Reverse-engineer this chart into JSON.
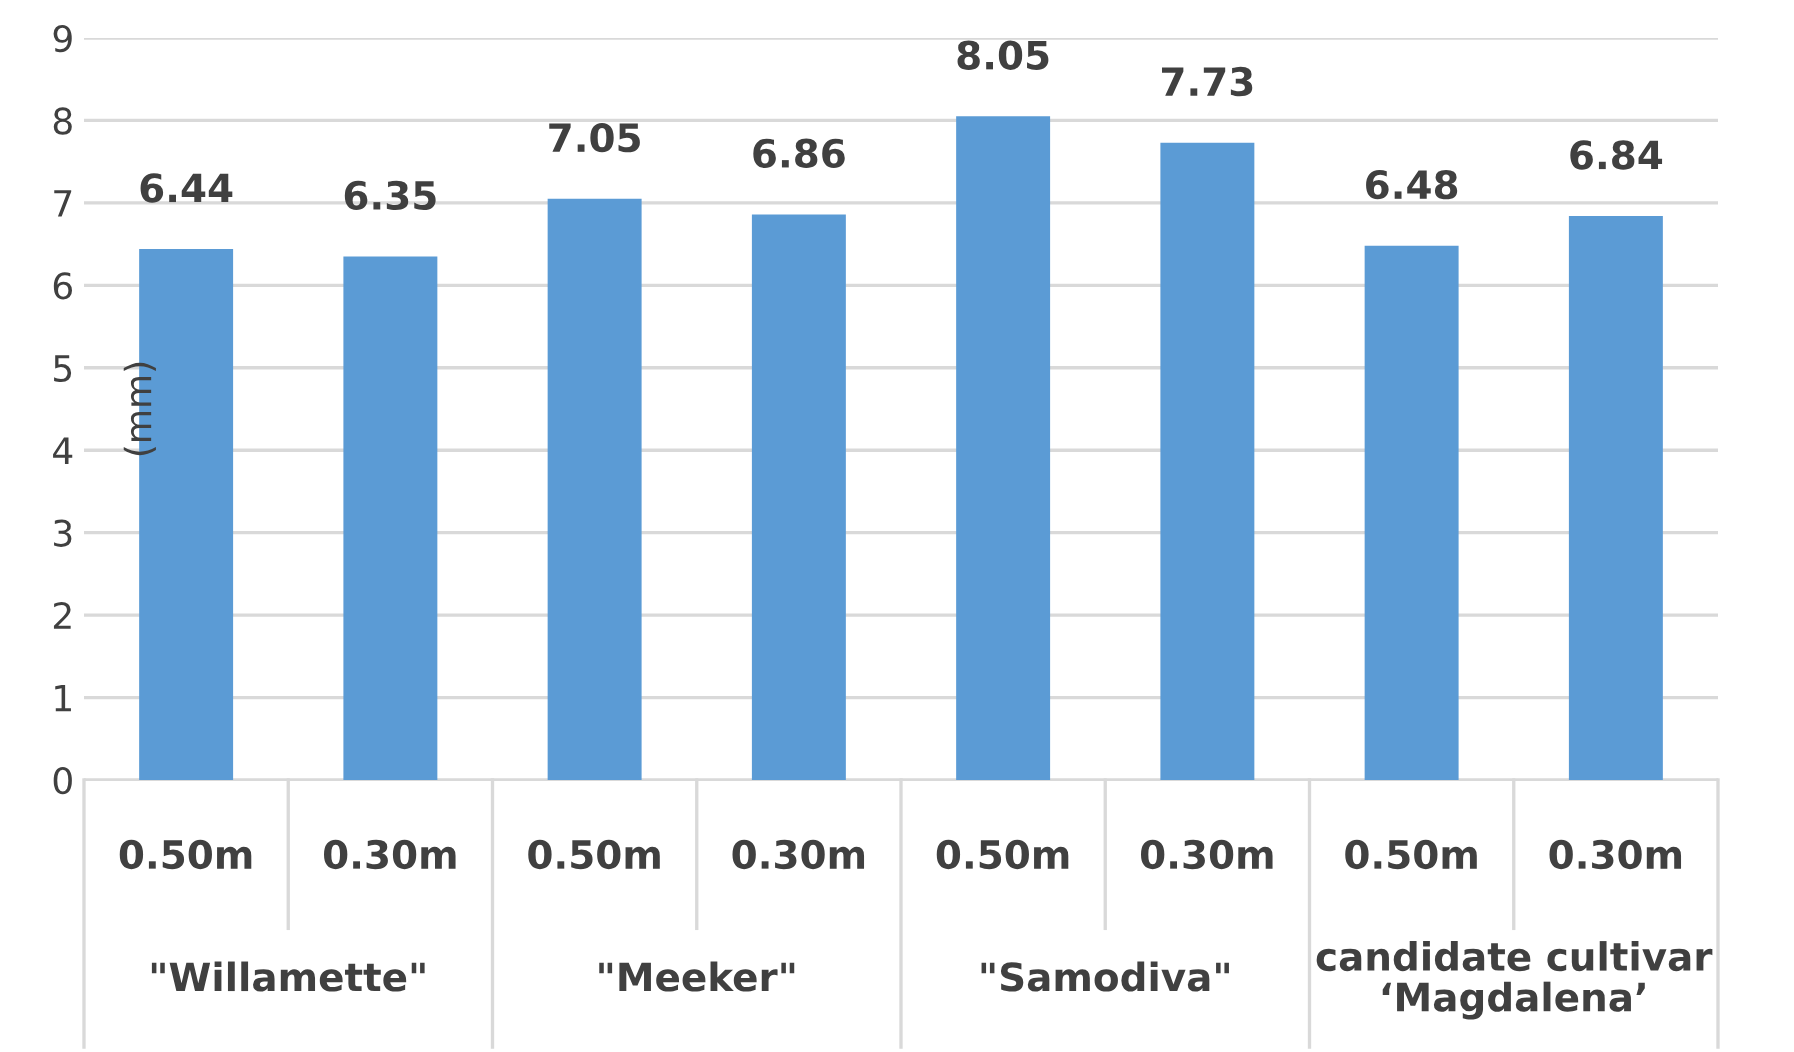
{
  "chart_data": {
    "type": "bar",
    "categories": [
      "0.50m",
      "0.30m",
      "0.50m",
      "0.30m",
      "0.50m",
      "0.30m",
      "0.50m",
      "0.30m"
    ],
    "values": [
      6.44,
      6.35,
      7.05,
      6.86,
      8.05,
      7.73,
      6.48,
      6.84
    ],
    "color": "#5b9bd5",
    "ylabel": "(mm)",
    "ylim": [
      0,
      9
    ],
    "yticks": [
      0,
      1,
      2,
      3,
      4,
      5,
      6,
      7,
      8,
      9
    ],
    "grid": "y",
    "data_labels": true,
    "legend": false,
    "annotations": [
      "\"Willamette\"",
      "\"Meeker\"",
      "\"Samodiva\"",
      "candidate cultivar\n‘Magdalena’"
    ]
  }
}
